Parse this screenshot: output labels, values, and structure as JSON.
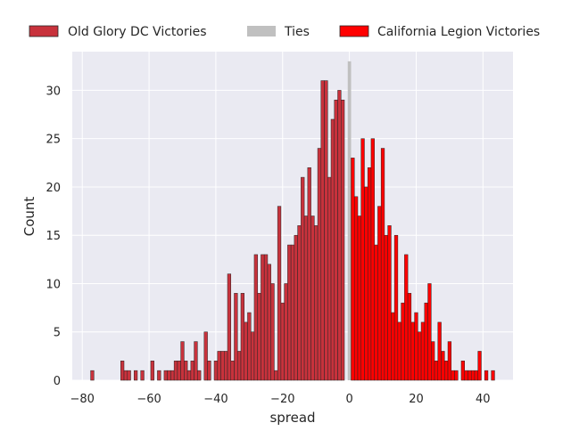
{
  "chart_data": {
    "type": "bar",
    "xlabel": "spread",
    "ylabel": "Count",
    "xlim": [
      -83,
      49
    ],
    "ylim": [
      0,
      34
    ],
    "x_ticks": [
      -80,
      -60,
      -40,
      -20,
      0,
      20,
      40
    ],
    "y_ticks": [
      0,
      5,
      10,
      15,
      20,
      25,
      30
    ],
    "x_tick_labels": [
      "−80",
      "−60",
      "−40",
      "−20",
      "0",
      "20",
      "40"
    ],
    "y_tick_labels": [
      "0",
      "5",
      "10",
      "15",
      "20",
      "25",
      "30"
    ],
    "grid": true,
    "legend_position": "top, outside plot",
    "bin_width": 1,
    "series": [
      {
        "name": "Old Glory DC Victories",
        "color": "#c8323c",
        "x": [
          -77,
          -68,
          -67,
          -66,
          -64,
          -62,
          -59,
          -57,
          -55,
          -54,
          -53,
          -52,
          -51,
          -50,
          -49,
          -48,
          -47,
          -46,
          -45,
          -44,
          -43,
          -42,
          -41,
          -40,
          -39,
          -38,
          -37,
          -36,
          -35,
          -34,
          -33,
          -32,
          -31,
          -30,
          -29,
          -28,
          -27,
          -26,
          -25,
          -24,
          -23,
          -22,
          -21,
          -20,
          -19,
          -18,
          -17,
          -16,
          -15,
          -14,
          -13,
          -12,
          -11,
          -10,
          -9,
          -8,
          -7,
          -6,
          -5,
          -4,
          -3,
          -2,
          -1
        ],
        "values": [
          1,
          2,
          1,
          1,
          1,
          1,
          2,
          1,
          1,
          1,
          1,
          2,
          2,
          4,
          2,
          1,
          2,
          4,
          1,
          0,
          5,
          2,
          0,
          2,
          3,
          3,
          3,
          11,
          2,
          9,
          3,
          9,
          6,
          7,
          5,
          13,
          9,
          13,
          13,
          12,
          10,
          1,
          18,
          8,
          10,
          14,
          14,
          15,
          16,
          21,
          17,
          22,
          17,
          16,
          24,
          31,
          31,
          21,
          27,
          29,
          30,
          29,
          0
        ]
      },
      {
        "name": "Ties",
        "color": "#c0c0c0",
        "x": [
          0
        ],
        "values": [
          33
        ]
      },
      {
        "name": "California Legion Victories",
        "color": "#ff0000",
        "x": [
          1,
          2,
          3,
          4,
          5,
          6,
          7,
          8,
          9,
          10,
          11,
          12,
          13,
          14,
          15,
          16,
          17,
          18,
          19,
          20,
          21,
          22,
          23,
          24,
          25,
          26,
          27,
          28,
          29,
          30,
          31,
          32,
          33,
          34,
          35,
          36,
          37,
          38,
          39,
          40,
          41,
          42,
          43,
          44
        ],
        "values": [
          23,
          19,
          17,
          25,
          20,
          22,
          25,
          14,
          18,
          24,
          15,
          16,
          7,
          15,
          6,
          8,
          13,
          9,
          6,
          7,
          5,
          6,
          8,
          10,
          4,
          2,
          6,
          3,
          2,
          4,
          1,
          1,
          0,
          2,
          1,
          1,
          1,
          1,
          3,
          0,
          1,
          0,
          1,
          0
        ]
      }
    ]
  }
}
